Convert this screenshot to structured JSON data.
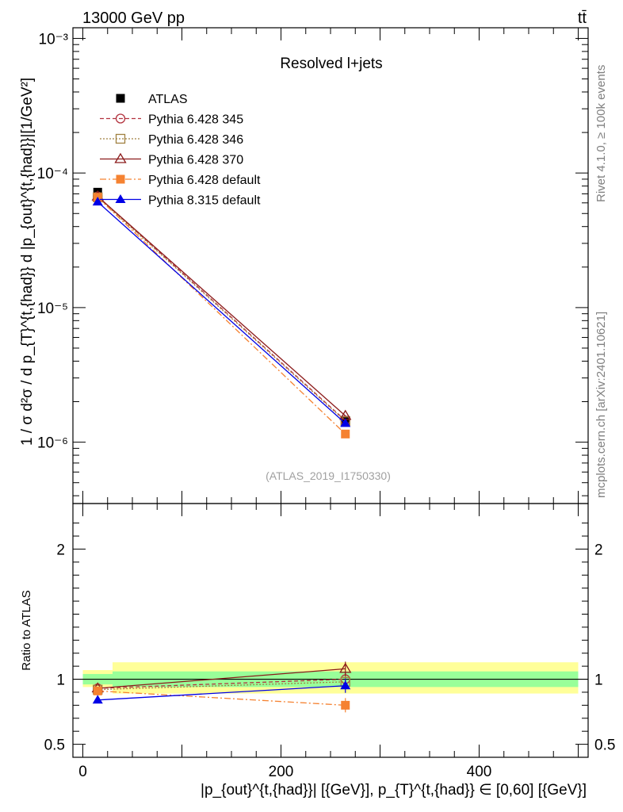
{
  "header": {
    "energy_label": "13000 GeV pp",
    "process_label": "tt̄",
    "analysis_id": "(ATLAS_2019_I1750330)",
    "side_rivet": "Rivet 4.1.0, ≥ 100k events",
    "side_mcplots": "mcplots.cern.ch [arXiv:2401.10621]"
  },
  "colors": {
    "ATLAS": "#000000",
    "Pythia 6.428 345": "#b3333f",
    "Pythia 6.428 346": "#a08040",
    "Pythia 6.428 370": "#8b1a1a",
    "Pythia 6.428 default": "#f58231",
    "Pythia 8.315 default": "#0000e6",
    "band_inner": "#99ff99",
    "band_outer": "#ffff99"
  },
  "chart_data": [
    {
      "type": "line",
      "panel": "main",
      "title": "Resolved l+jets",
      "ylabel": "1 / σ d²σ / d p_{T}^{t,{had}} d |p_{out}^{t,{had}}|[1/GeV²]",
      "yscale": "log",
      "ylim": [
        3.5e-07,
        0.0012
      ],
      "xlim": [
        -10,
        510
      ],
      "y_ticks": [
        "10⁻⁶",
        "10⁻⁵",
        "10⁻⁴",
        "10⁻³"
      ],
      "x": [
        15,
        265
      ],
      "legend": [
        "ATLAS",
        "Pythia 6.428 345",
        "Pythia 6.428 346",
        "Pythia 6.428 370",
        "Pythia 6.428 default",
        "Pythia 8.315 default"
      ],
      "series": [
        {
          "name": "ATLAS",
          "values": [
            7.2e-05,
            1.45e-06
          ]
        },
        {
          "name": "Pythia 6.428 345",
          "values": [
            6.7e-05,
            1.45e-06
          ]
        },
        {
          "name": "Pythia 6.428 346",
          "values": [
            6.6e-05,
            1.43e-06
          ]
        },
        {
          "name": "Pythia 6.428 370",
          "values": [
            6.7e-05,
            1.57e-06
          ]
        },
        {
          "name": "Pythia 6.428 default",
          "values": [
            6.6e-05,
            1.15e-06
          ]
        },
        {
          "name": "Pythia 8.315 default",
          "values": [
            6.1e-05,
            1.38e-06
          ]
        }
      ]
    },
    {
      "type": "line",
      "panel": "ratio",
      "ylabel": "Ratio to ATLAS",
      "ylim": [
        0.4,
        2.35
      ],
      "xlim": [
        -10,
        510
      ],
      "y_ticks": [
        "0.5",
        "1",
        "2"
      ],
      "x_ticks": [
        "0",
        "200",
        "400"
      ],
      "xlabel": "|p_{out}^{t,{had}}| [{GeV}], p_{T}^{t,{had}} ∈ [0,60] [{GeV}]",
      "x": [
        15,
        265
      ],
      "bins": [
        [
          0,
          30
        ],
        [
          30,
          500
        ]
      ],
      "band_inner": [
        [
          0.96,
          1.04
        ],
        [
          0.94,
          1.06
        ]
      ],
      "band_outer": [
        [
          0.94,
          1.07
        ],
        [
          0.89,
          1.13
        ]
      ],
      "series": [
        {
          "name": "Pythia 6.428 345",
          "values": [
            0.93,
            1.0
          ]
        },
        {
          "name": "Pythia 6.428 346",
          "values": [
            0.92,
            0.98
          ]
        },
        {
          "name": "Pythia 6.428 370",
          "values": [
            0.93,
            1.08
          ]
        },
        {
          "name": "Pythia 6.428 default",
          "values": [
            0.91,
            0.8
          ]
        },
        {
          "name": "Pythia 8.315 default",
          "values": [
            0.84,
            0.95
          ]
        }
      ]
    }
  ]
}
